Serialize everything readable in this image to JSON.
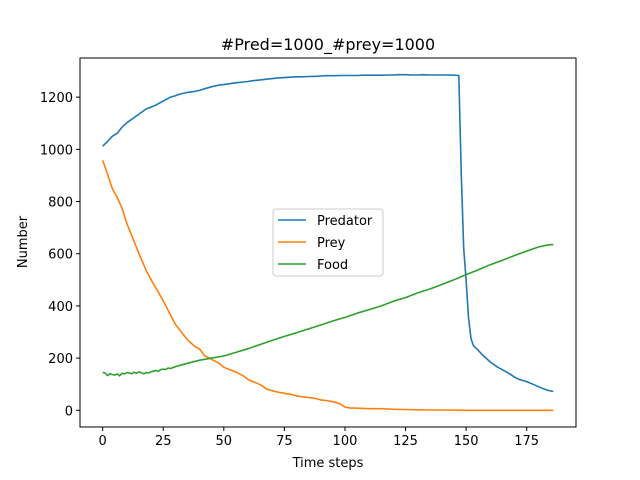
{
  "chart_data": {
    "type": "line",
    "title": "#Pred=1000_#prey=1000",
    "xlabel": "Time steps",
    "ylabel": "Number",
    "xlim": [
      -9.35,
      195.35
    ],
    "ylim": [
      -64,
      1350
    ],
    "xticks": [
      0,
      25,
      50,
      75,
      100,
      125,
      150,
      175
    ],
    "yticks": [
      0,
      200,
      400,
      600,
      800,
      1000,
      1200
    ],
    "grid": false,
    "legend_position": "center",
    "series": [
      {
        "name": "Predator",
        "color": "#1f77b4",
        "x": [
          0,
          2,
          4,
          6,
          8,
          10,
          12,
          15,
          18,
          20,
          22,
          25,
          28,
          30,
          32,
          35,
          38,
          40,
          42,
          45,
          48,
          50,
          52,
          55,
          58,
          60,
          62,
          65,
          68,
          70,
          72,
          75,
          78,
          80,
          82,
          85,
          88,
          90,
          92,
          95,
          98,
          100,
          102,
          105,
          108,
          110,
          112,
          115,
          118,
          120,
          122,
          125,
          128,
          130,
          132,
          135,
          138,
          140,
          142,
          145,
          147,
          148,
          149,
          150,
          151,
          152,
          153,
          155,
          157,
          160,
          163,
          165,
          168,
          170,
          172,
          175,
          178,
          180,
          182,
          184,
          186
        ],
        "y": [
          1012,
          1030,
          1050,
          1062,
          1085,
          1102,
          1115,
          1135,
          1155,
          1162,
          1170,
          1185,
          1200,
          1205,
          1212,
          1218,
          1222,
          1226,
          1232,
          1240,
          1246,
          1248,
          1251,
          1255,
          1258,
          1260,
          1263,
          1266,
          1269,
          1271,
          1273,
          1275,
          1277,
          1278,
          1278,
          1279,
          1280,
          1281,
          1282,
          1282,
          1283,
          1283,
          1283,
          1283,
          1284,
          1284,
          1284,
          1284,
          1285,
          1285,
          1286,
          1286,
          1285,
          1285,
          1286,
          1285,
          1285,
          1285,
          1285,
          1284,
          1283,
          900,
          620,
          500,
          355,
          275,
          248,
          230,
          210,
          185,
          165,
          155,
          140,
          127,
          118,
          110,
          98,
          90,
          82,
          76,
          72
        ]
      },
      {
        "name": "Prey",
        "color": "#ff7f0e",
        "x": [
          0,
          2,
          4,
          6,
          8,
          10,
          12,
          15,
          18,
          20,
          22,
          25,
          28,
          30,
          32,
          35,
          38,
          40,
          42,
          45,
          48,
          50,
          52,
          55,
          58,
          60,
          62,
          65,
          68,
          70,
          72,
          75,
          78,
          80,
          82,
          85,
          88,
          90,
          92,
          95,
          98,
          100,
          102,
          105,
          110,
          115,
          118,
          120,
          125,
          130,
          135,
          140,
          150,
          160,
          170,
          180,
          186
        ],
        "y": [
          958,
          905,
          850,
          815,
          775,
          715,
          670,
          600,
          535,
          500,
          468,
          420,
          365,
          330,
          305,
          270,
          245,
          235,
          210,
          195,
          180,
          165,
          157,
          147,
          132,
          118,
          110,
          98,
          80,
          75,
          70,
          65,
          60,
          55,
          52,
          49,
          45,
          40,
          38,
          33,
          25,
          12,
          9,
          8,
          6,
          6,
          5,
          4,
          3,
          2,
          1,
          1,
          0,
          0,
          0,
          0,
          0
        ]
      },
      {
        "name": "Food",
        "color": "#2ca02c",
        "x": [
          0,
          1,
          2,
          3,
          4,
          5,
          6,
          7,
          8,
          9,
          10,
          11,
          12,
          13,
          14,
          15,
          16,
          17,
          18,
          19,
          20,
          21,
          22,
          23,
          24,
          25,
          26,
          27,
          28,
          30,
          35,
          40,
          45,
          50,
          55,
          60,
          65,
          70,
          75,
          80,
          85,
          90,
          95,
          100,
          105,
          110,
          115,
          120,
          125,
          130,
          135,
          140,
          145,
          150,
          155,
          160,
          165,
          170,
          175,
          180,
          184,
          186
        ],
        "y": [
          146,
          143,
          133,
          140,
          137,
          135,
          140,
          132,
          142,
          139,
          145,
          143,
          140,
          146,
          142,
          147,
          144,
          140,
          145,
          143,
          148,
          150,
          152,
          150,
          156,
          158,
          156,
          162,
          160,
          167,
          180,
          192,
          200,
          208,
          222,
          236,
          252,
          268,
          283,
          297,
          312,
          327,
          342,
          356,
          372,
          386,
          400,
          418,
          432,
          450,
          465,
          482,
          500,
          520,
          538,
          558,
          575,
          593,
          610,
          626,
          634,
          635
        ]
      }
    ]
  }
}
